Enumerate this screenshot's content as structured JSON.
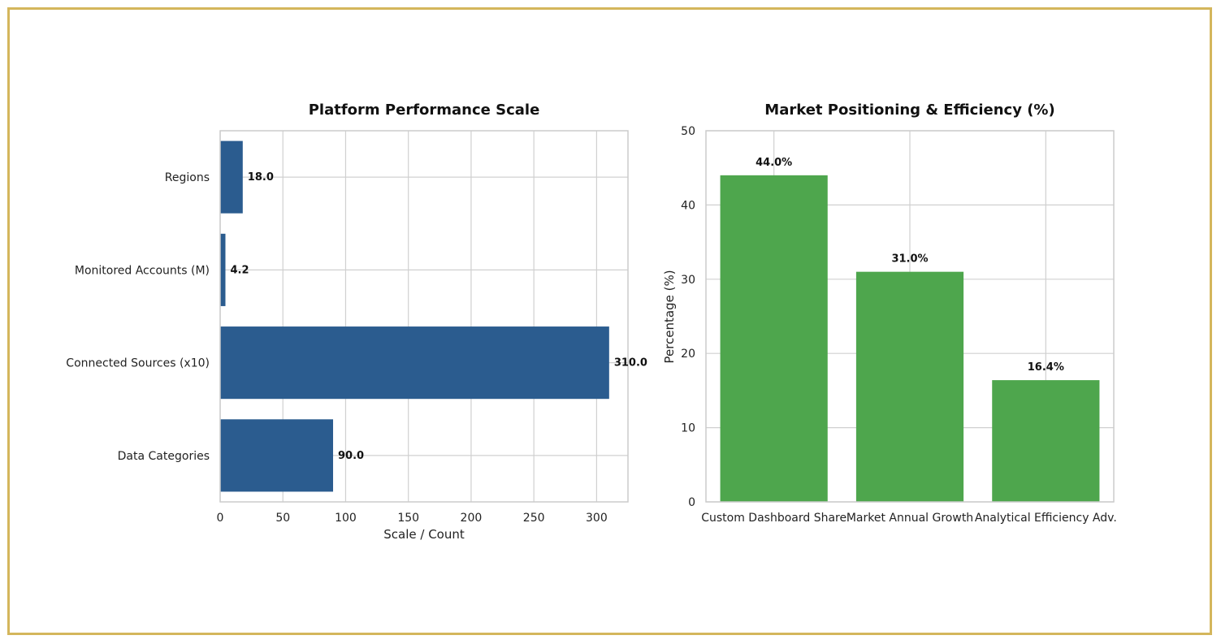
{
  "chart_data": [
    {
      "type": "bar",
      "orientation": "horizontal",
      "title": "Platform Performance Scale",
      "xlabel": "Scale / Count",
      "ylabel": "",
      "categories": [
        "Regions",
        "Monitored Accounts (M)",
        "Connected Sources (x10)",
        "Data Categories"
      ],
      "values": [
        18.0,
        4.2,
        310.0,
        90.0
      ],
      "data_labels": [
        "18.0",
        "4.2",
        "310.0",
        "90.0"
      ],
      "xlim": [
        0,
        325
      ],
      "xticks": [
        0,
        50,
        100,
        150,
        200,
        250,
        300
      ],
      "grid": true,
      "color": "#2b5c8f"
    },
    {
      "type": "bar",
      "orientation": "vertical",
      "title": "Market Positioning & Efficiency (%)",
      "xlabel": "",
      "ylabel": "Percentage (%)",
      "categories": [
        "Custom Dashboard Share",
        "Market Annual Growth",
        "Analytical Efficiency Adv."
      ],
      "values": [
        44.0,
        31.0,
        16.4
      ],
      "data_labels": [
        "44.0%",
        "31.0%",
        "16.4%"
      ],
      "ylim": [
        0,
        50
      ],
      "yticks": [
        0,
        10,
        20,
        30,
        40,
        50
      ],
      "grid": true,
      "color": "#4ea64d"
    }
  ]
}
